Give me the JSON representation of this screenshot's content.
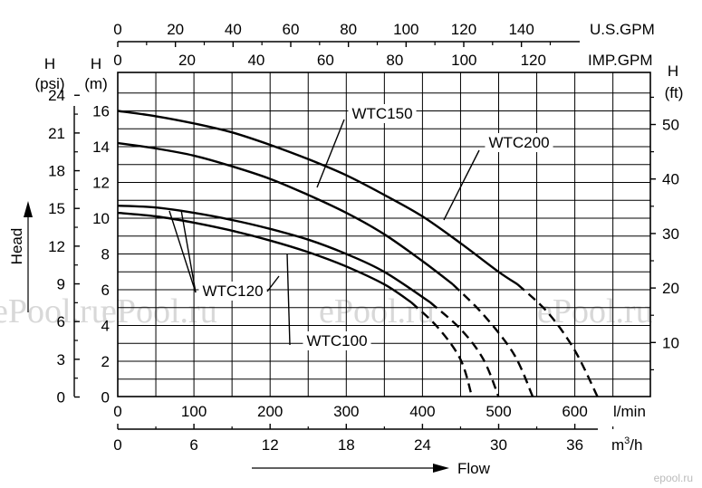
{
  "chart_data": {
    "type": "line",
    "title": "",
    "xlabel": "Flow",
    "ylabel": "Head",
    "grid": true,
    "x_axes": {
      "lmin": {
        "unit": "l/min",
        "range": [
          0,
          700
        ],
        "ticks": [
          0,
          100,
          200,
          300,
          400,
          500,
          600
        ]
      },
      "m3h": {
        "unit": "m3/h",
        "unit_superscript": "3",
        "range": [
          0,
          42
        ],
        "ticks": [
          0,
          6,
          12,
          18,
          24,
          30,
          36
        ]
      },
      "usgpm": {
        "unit": "U.S.GPM",
        "range": [
          0,
          185
        ],
        "ticks": [
          0,
          20,
          40,
          60,
          80,
          100,
          120,
          140
        ]
      },
      "impgpm": {
        "unit": "IMP.GPM",
        "range": [
          0,
          154
        ],
        "ticks": [
          0,
          20,
          40,
          60,
          80,
          100,
          120
        ]
      }
    },
    "y_axes": {
      "m": {
        "unit": "(m)",
        "label": "H",
        "range": [
          0,
          16
        ],
        "ticks": [
          0,
          2,
          4,
          6,
          8,
          10,
          12,
          14,
          16
        ]
      },
      "psi": {
        "unit": "(psi)",
        "label": "H",
        "range": [
          0,
          24
        ],
        "ticks": [
          0,
          3,
          6,
          9,
          12,
          15,
          18,
          21,
          24
        ]
      },
      "ft": {
        "unit": "(ft)",
        "label": "H",
        "range": [
          0,
          56
        ],
        "ticks": [
          10,
          20,
          30,
          40,
          50
        ]
      }
    },
    "series": [
      {
        "name": "WTC100",
        "solid": [
          [
            0,
            10.3
          ],
          [
            50,
            10.1
          ],
          [
            100,
            9.75
          ],
          [
            150,
            9.3
          ],
          [
            200,
            8.75
          ],
          [
            250,
            8.1
          ],
          [
            300,
            7.3
          ],
          [
            350,
            6.3
          ],
          [
            385,
            5.3
          ]
        ],
        "dashed": [
          [
            385,
            5.3
          ],
          [
            420,
            3.9
          ],
          [
            450,
            2.1
          ],
          [
            465,
            0.0
          ]
        ]
      },
      {
        "name": "WTC120",
        "solid": [
          [
            0,
            10.7
          ],
          [
            50,
            10.6
          ],
          [
            100,
            10.3
          ],
          [
            150,
            9.9
          ],
          [
            200,
            9.4
          ],
          [
            250,
            8.8
          ],
          [
            300,
            8.0
          ],
          [
            350,
            7.0
          ],
          [
            410,
            5.3
          ]
        ],
        "dashed": [
          [
            410,
            5.3
          ],
          [
            450,
            3.8
          ],
          [
            480,
            2.1
          ],
          [
            500,
            0.0
          ]
        ]
      },
      {
        "name": "WTC150",
        "solid": [
          [
            0,
            14.2
          ],
          [
            50,
            13.9
          ],
          [
            100,
            13.5
          ],
          [
            150,
            12.9
          ],
          [
            200,
            12.2
          ],
          [
            250,
            11.3
          ],
          [
            300,
            10.3
          ],
          [
            350,
            9.1
          ],
          [
            400,
            7.6
          ],
          [
            440,
            6.3
          ]
        ],
        "dashed": [
          [
            440,
            6.3
          ],
          [
            480,
            4.6
          ],
          [
            520,
            2.4
          ],
          [
            545,
            0.0
          ]
        ]
      },
      {
        "name": "WTC200",
        "solid": [
          [
            0,
            16.0
          ],
          [
            50,
            15.7
          ],
          [
            100,
            15.3
          ],
          [
            150,
            14.8
          ],
          [
            200,
            14.1
          ],
          [
            250,
            13.3
          ],
          [
            300,
            12.4
          ],
          [
            350,
            11.3
          ],
          [
            400,
            10.1
          ],
          [
            450,
            8.6
          ],
          [
            500,
            7.0
          ],
          [
            525,
            6.3
          ]
        ],
        "dashed": [
          [
            525,
            6.3
          ],
          [
            565,
            4.7
          ],
          [
            600,
            2.6
          ],
          [
            630,
            0.0
          ]
        ]
      }
    ],
    "series_labels": [
      {
        "name": "WTC150",
        "text": "WTC150"
      },
      {
        "name": "WTC200",
        "text": "WTC200"
      },
      {
        "name": "WTC120",
        "text": "WTC120"
      },
      {
        "name": "WTC100",
        "text": "WTC100"
      }
    ]
  },
  "watermark": {
    "text": "ePool.ru",
    "corner": "epool.ru"
  }
}
